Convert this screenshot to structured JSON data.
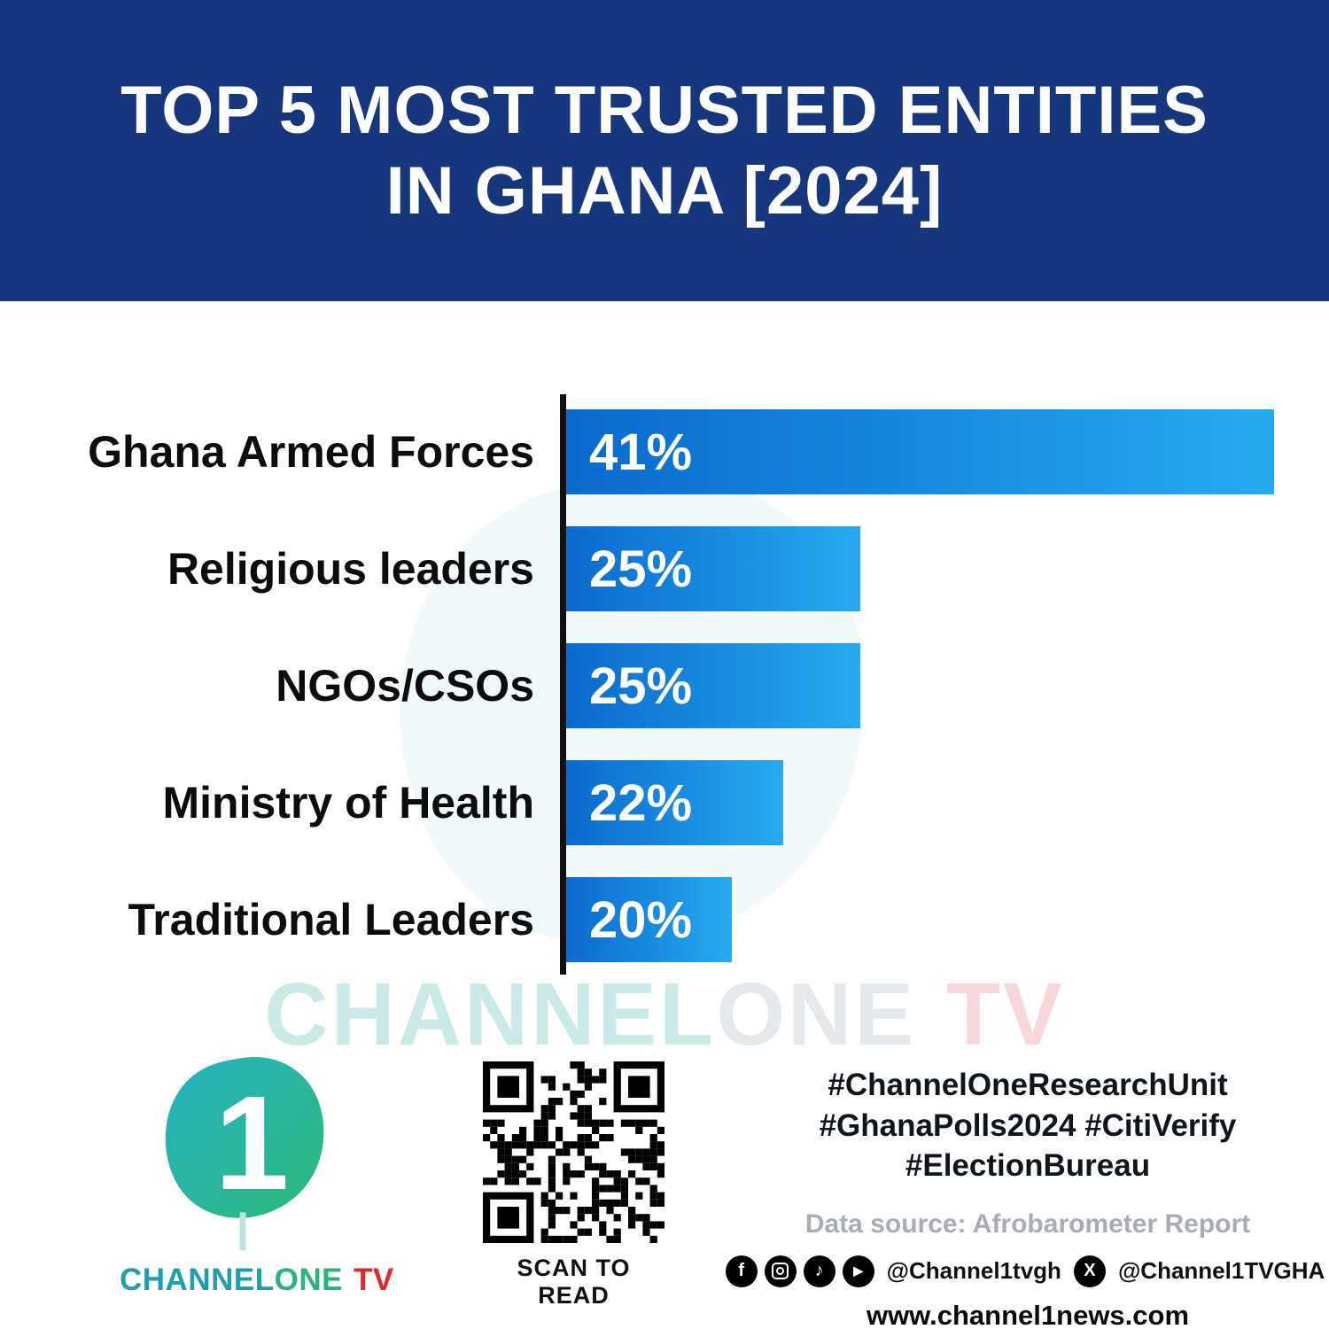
{
  "header": {
    "title_line1": "TOP 5 MOST TRUSTED ENTITIES",
    "title_line2": "IN GHANA [2024]"
  },
  "chart_data": {
    "type": "bar",
    "orientation": "horizontal",
    "title": "TOP 5 MOST TRUSTED ENTITIES IN GHANA [2024]",
    "categories": [
      "Ghana Armed Forces",
      "Religious leaders",
      "NGOs/CSOs",
      "Ministry of Health",
      "Traditional Leaders"
    ],
    "values": [
      41,
      25,
      25,
      22,
      20
    ],
    "value_labels": [
      "41%",
      "25%",
      "25%",
      "22%",
      "20%"
    ],
    "unit": "%",
    "xlim": [
      0,
      41
    ],
    "display_width_pct": [
      100,
      41.5,
      41.5,
      30.7,
      23.4
    ],
    "bar_gradient": [
      "#0a6ace",
      "#27aaf0"
    ],
    "axis_color": "#101010",
    "grid": false,
    "legend": "none"
  },
  "watermark": {
    "part1": "CHANNEL",
    "part2": "ONE",
    "part3": "TV"
  },
  "icons": {
    "facebook": "f",
    "tiktok": "♪",
    "youtube": "▶",
    "x": "X"
  },
  "footer": {
    "logo": {
      "numeral": "1",
      "word1": "CHANNEL",
      "word2": "ONE",
      "word3": "TV"
    },
    "qr_caption": "SCAN TO READ",
    "hashtags": [
      "#ChannelOneResearchUnit",
      "#GhanaPolls2024 #CitiVerify",
      "#ElectionBureau"
    ],
    "data_source": "Data source: Afrobarometer Report",
    "social": {
      "handle1": "@Channel1tvgh",
      "handle2": "@Channel1TVGHA"
    },
    "website": "www.channel1news.com"
  },
  "colors": {
    "header_bg": "#16367d",
    "bar_start": "#0a6ace",
    "bar_end": "#27aaf0",
    "brand_teal": "#1e9fb0",
    "brand_green": "#29b478",
    "brand_red": "#e3262c"
  }
}
